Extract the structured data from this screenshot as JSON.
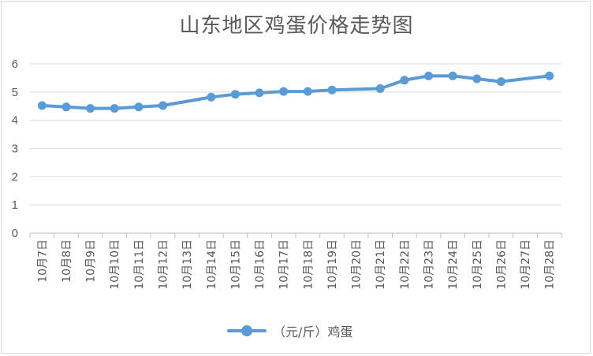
{
  "chart_data": {
    "type": "line",
    "title": "山东地区鸡蛋价格走势图",
    "categories": [
      "10月7日",
      "10月8日",
      "10月9日",
      "10月10日",
      "10月11日",
      "10月12日",
      "10月13日",
      "10月14日",
      "10月15日",
      "10月16日",
      "10月17日",
      "10月18日",
      "10月19日",
      "10月20日",
      "10月21日",
      "10月22日",
      "10月23日",
      "10月24日",
      "10月25日",
      "10月26日",
      "10月27日",
      "10月28日"
    ],
    "series": [
      {
        "name": "（元/斤）鸡蛋",
        "color": "#5b9bd5",
        "values": [
          4.52,
          4.47,
          4.42,
          4.42,
          4.47,
          4.52,
          null,
          4.82,
          4.92,
          4.97,
          5.02,
          5.02,
          5.07,
          null,
          5.12,
          5.42,
          5.57,
          5.57,
          5.47,
          5.37,
          null,
          5.57
        ]
      }
    ],
    "ylim": [
      0,
      6
    ],
    "yticks": [
      "0",
      "1",
      "2",
      "3",
      "4",
      "5",
      "6"
    ],
    "grid": true,
    "legend": "bottom",
    "xlabel": "",
    "ylabel": ""
  }
}
